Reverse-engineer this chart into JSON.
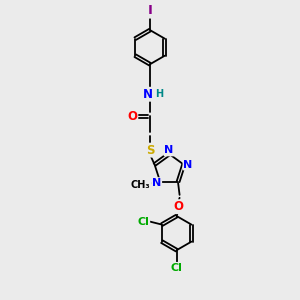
{
  "bg_color": "#ebebeb",
  "bond_color": "#000000",
  "atom_colors": {
    "N": "#0000ff",
    "O": "#ff0000",
    "S": "#ccaa00",
    "Cl": "#00aa00",
    "I": "#880088",
    "C": "#000000",
    "H": "#008888"
  },
  "font_size_atom": 8.5,
  "lw": 1.3,
  "figsize": [
    3.0,
    3.0
  ],
  "dpi": 100
}
